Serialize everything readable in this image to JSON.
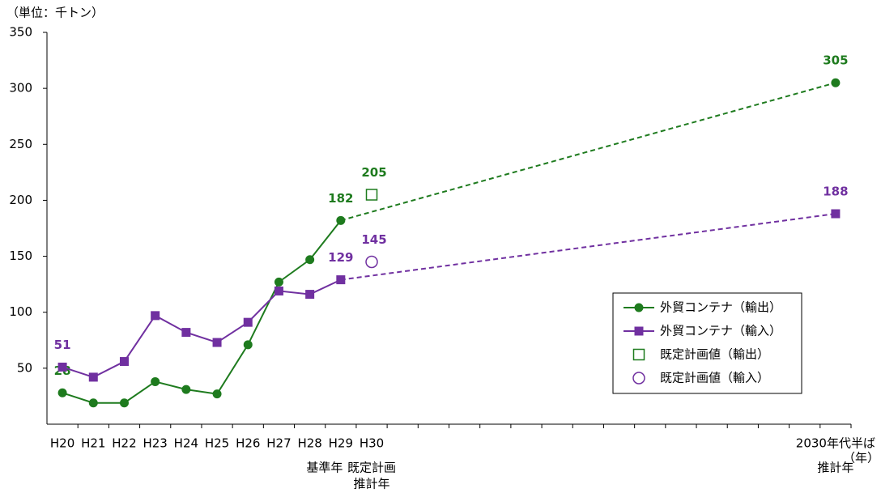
{
  "chart_data": {
    "type": "line",
    "y_label": "（単位：千トン）",
    "x_label": "（年）",
    "categories": [
      "H20",
      "H21",
      "H22",
      "H23",
      "H24",
      "H25",
      "H26",
      "H27",
      "H28",
      "H29",
      "H30",
      null,
      null,
      null,
      null,
      null,
      null,
      null,
      null,
      null,
      null,
      null,
      null,
      null,
      null,
      "2030年代半ば"
    ],
    "category_notes": [
      null,
      null,
      null,
      null,
      null,
      null,
      null,
      null,
      null,
      [
        "基準年"
      ],
      [
        "既定計画",
        "推計年"
      ],
      null,
      null,
      null,
      null,
      null,
      null,
      null,
      null,
      null,
      null,
      null,
      null,
      null,
      null,
      [
        "推計年"
      ]
    ],
    "ylim": [
      0,
      350
    ],
    "yticks": [
      50,
      100,
      150,
      200,
      250,
      300,
      350
    ],
    "grid": false,
    "gap_style": "dashed",
    "legend_position": "right",
    "series": [
      {
        "name": "外貿コンテナ（輸出）",
        "color": "#1e7b1e",
        "marker": "circle",
        "line": true,
        "filled": true,
        "values": [
          28,
          19,
          19,
          38,
          31,
          27,
          71,
          127,
          147,
          182,
          null,
          null,
          null,
          null,
          null,
          null,
          null,
          null,
          null,
          null,
          null,
          null,
          null,
          null,
          null,
          305
        ],
        "labeled_points": [
          0,
          9,
          25
        ]
      },
      {
        "name": "外貿コンテナ（輸入）",
        "color": "#7030a0",
        "marker": "square",
        "line": true,
        "filled": true,
        "values": [
          51,
          42,
          56,
          97,
          82,
          73,
          91,
          119,
          116,
          129,
          null,
          null,
          null,
          null,
          null,
          null,
          null,
          null,
          null,
          null,
          null,
          null,
          null,
          null,
          null,
          188
        ],
        "labeled_points": [
          0,
          9,
          25
        ]
      },
      {
        "name": "既定計画値（輸出）",
        "color": "#1e7b1e",
        "marker": "square",
        "line": false,
        "filled": false,
        "values": [
          null,
          null,
          null,
          null,
          null,
          null,
          null,
          null,
          null,
          null,
          205,
          null,
          null,
          null,
          null,
          null,
          null,
          null,
          null,
          null,
          null,
          null,
          null,
          null,
          null,
          null
        ],
        "labeled_points": [
          10
        ]
      },
      {
        "name": "既定計画値（輸入）",
        "color": "#7030a0",
        "marker": "circle",
        "line": false,
        "filled": false,
        "values": [
          null,
          null,
          null,
          null,
          null,
          null,
          null,
          null,
          null,
          null,
          145,
          null,
          null,
          null,
          null,
          null,
          null,
          null,
          null,
          null,
          null,
          null,
          null,
          null,
          null,
          null
        ],
        "labeled_points": [
          10
        ]
      }
    ]
  }
}
